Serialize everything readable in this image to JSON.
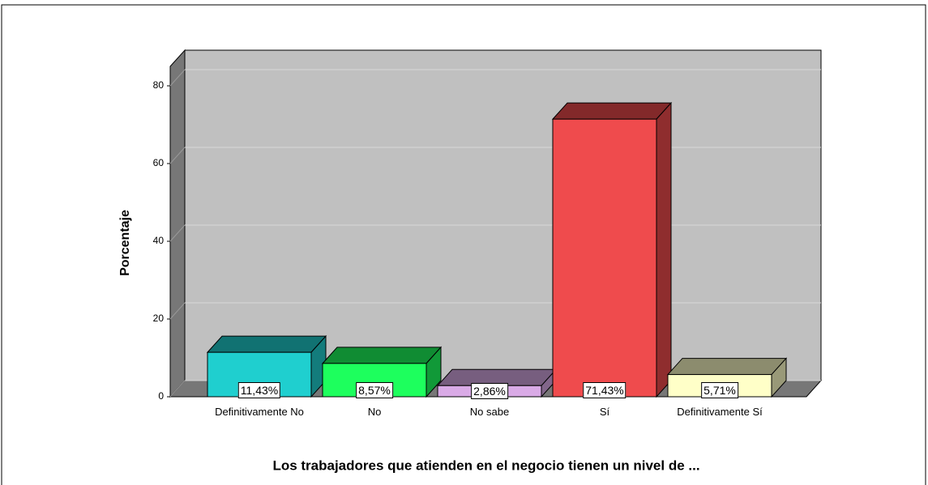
{
  "chart_data": {
    "type": "bar3d",
    "xlabel": "Los trabajadores que atienden en el negocio tienen un nivel de ...",
    "ylabel": "Porcentaje",
    "categories": [
      "Definitivamente No",
      "No",
      "No sabe",
      "Sí",
      "Definitivamente Sí"
    ],
    "values": [
      11.43,
      8.57,
      2.86,
      71.43,
      5.71
    ],
    "value_labels": [
      "11,43%",
      "8,57%",
      "2,86%",
      "71,43%",
      "5,71%"
    ],
    "colors": [
      "#1fcfcf",
      "#1dff5d",
      "#d9aae6",
      "#ef4b4d",
      "#ffffc8"
    ],
    "ylim": [
      0,
      85
    ],
    "yticks": [
      0,
      20,
      40,
      60,
      80
    ],
    "grid": true
  }
}
